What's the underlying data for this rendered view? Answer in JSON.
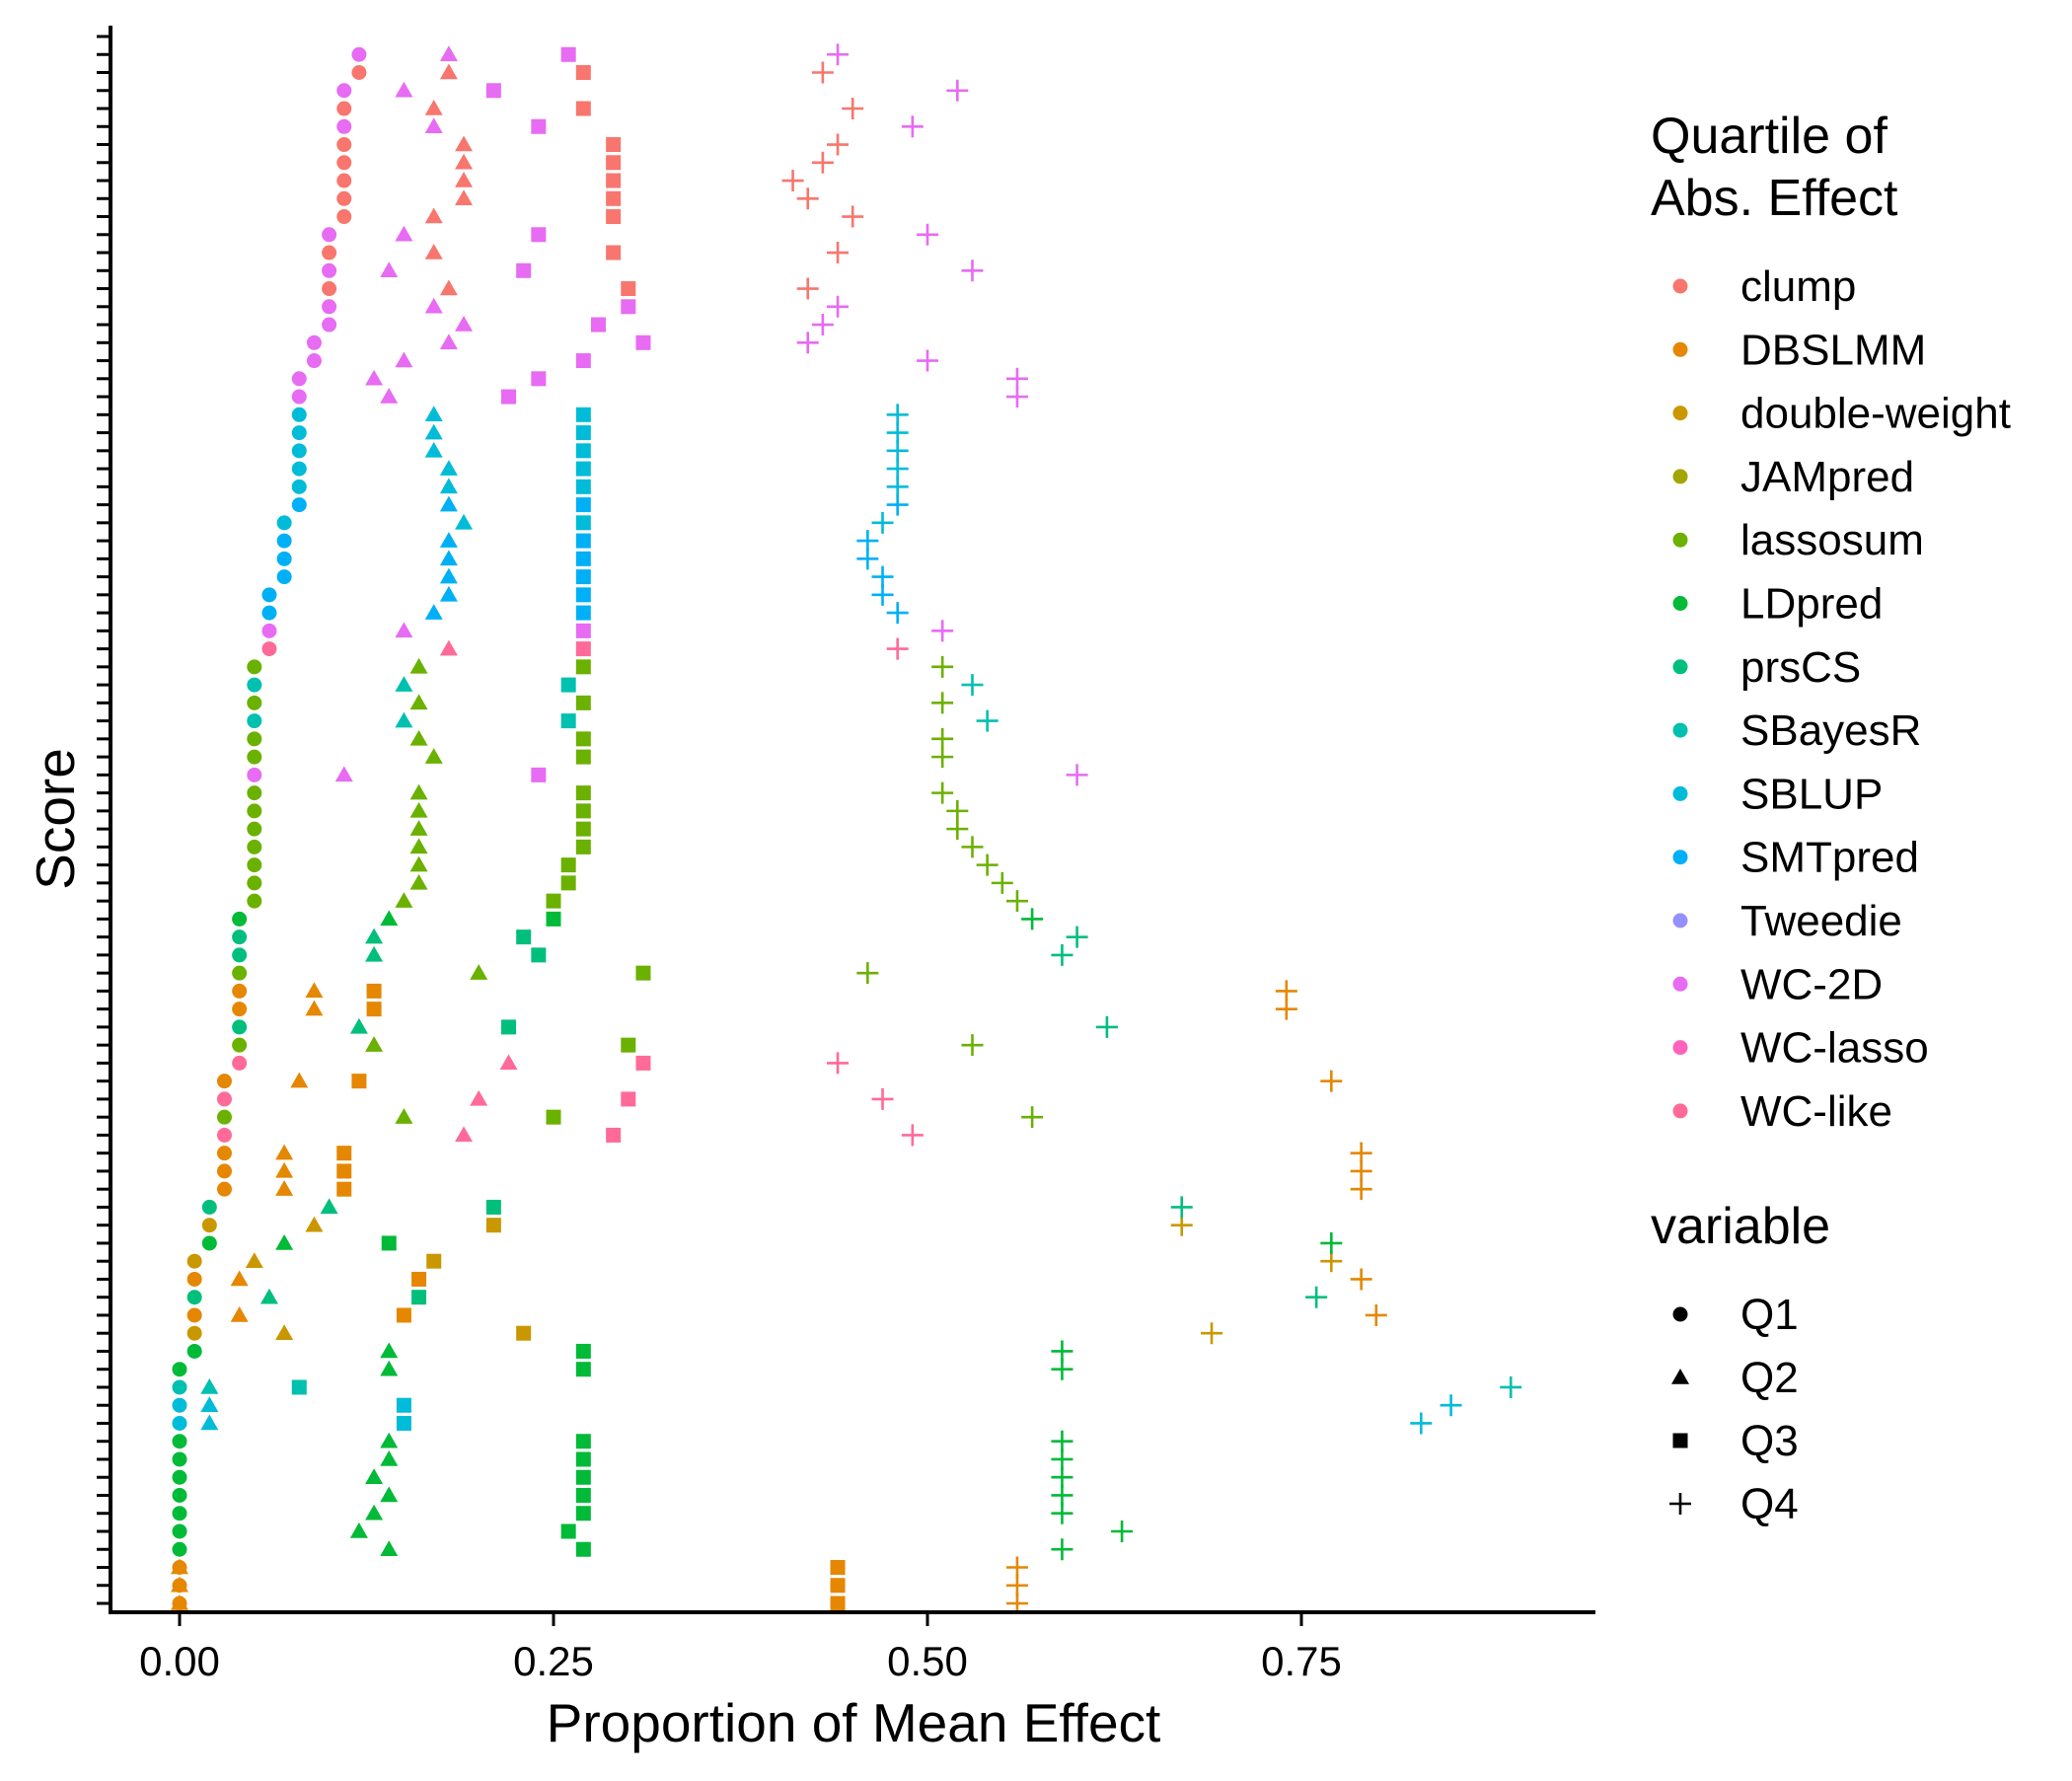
{
  "chart_data": {
    "type": "scatter",
    "xlabel": "Proportion of Mean Effect",
    "ylabel": "Score",
    "xlim": [
      -0.1,
      0.94
    ],
    "ylim": [
      0.5,
      88.5
    ],
    "x_ticks": [
      "0.00",
      "0.25",
      "0.50",
      "0.75"
    ],
    "x_tick_values": [
      0,
      0.25,
      0.5,
      0.75
    ],
    "y_tick_count": 88,
    "y_tick_labels_shown": false,
    "grid": false,
    "legend_position": "right",
    "legend_color": {
      "title_line1": "Quartile of",
      "title_line2": "Abs. Effect",
      "entries": [
        {
          "label": "clump",
          "color": "#F8766D"
        },
        {
          "label": "DBSLMM",
          "color": "#E58700"
        },
        {
          "label": "double-weight",
          "color": "#C99800"
        },
        {
          "label": "JAMpred",
          "color": "#A3A500"
        },
        {
          "label": "lassosum",
          "color": "#6BB100"
        },
        {
          "label": "LDpred",
          "color": "#00BA38"
        },
        {
          "label": "prsCS",
          "color": "#00BF7D"
        },
        {
          "label": "SBayesR",
          "color": "#00C0AF"
        },
        {
          "label": "SBLUP",
          "color": "#00BCD8"
        },
        {
          "label": "SMTpred",
          "color": "#00B0F6"
        },
        {
          "label": "Tweedie",
          "color": "#9590FF"
        },
        {
          "label": "WC-2D",
          "color": "#E76BF3"
        },
        {
          "label": "WC-lasso",
          "color": "#FF62BC"
        },
        {
          "label": "WC-like",
          "color": "#FF6A98"
        }
      ]
    },
    "legend_shape": {
      "title": "variable",
      "entries": [
        {
          "label": "Q1",
          "shape": "circle"
        },
        {
          "label": "Q2",
          "shape": "triangle"
        },
        {
          "label": "Q3",
          "shape": "square"
        },
        {
          "label": "Q4",
          "shape": "plus"
        }
      ]
    },
    "series": [
      {
        "method": "DBSLMM",
        "y": [
          1,
          2,
          3
        ],
        "Q1": [
          0,
          0,
          0
        ],
        "Q2": [
          0,
          0,
          0
        ],
        "Q3": [
          0.44,
          0.44,
          0.44
        ],
        "Q4": [
          0.56,
          0.56,
          0.56
        ]
      },
      {
        "method": "LDpred",
        "y": [
          4,
          5,
          6,
          7,
          8,
          9,
          10
        ],
        "Q1": [
          0,
          0,
          0,
          0,
          0,
          0,
          0
        ],
        "Q2": [
          0.14,
          0.12,
          0.13,
          0.14,
          0.13,
          0.14,
          0.14
        ],
        "Q3": [
          0.27,
          0.26,
          0.27,
          0.27,
          0.27,
          0.27,
          0.27
        ],
        "Q4": [
          0.59,
          0.63,
          0.59,
          0.59,
          0.59,
          0.59,
          0.59
        ]
      },
      {
        "method": "SBLUP",
        "y": [
          11,
          12
        ],
        "Q1": [
          0,
          0
        ],
        "Q2": [
          0.02,
          0.02
        ],
        "Q3": [
          0.15,
          0.15
        ],
        "Q4": [
          0.83,
          0.85
        ]
      },
      {
        "method": "SBayesR",
        "y": [
          13
        ],
        "Q1": [
          0
        ],
        "Q2": [
          0.02
        ],
        "Q3": [
          0.08
        ],
        "Q4": [
          0.89
        ]
      },
      {
        "method": "LDpred",
        "y": [
          14,
          15
        ],
        "Q1": [
          0,
          0.01
        ],
        "Q2": [
          0.14,
          0.14
        ],
        "Q3": [
          0.27,
          0.27
        ],
        "Q4": [
          0.59,
          0.59
        ]
      },
      {
        "method": "double-weight",
        "y": [
          16
        ],
        "Q1": [
          0.01
        ],
        "Q2": [
          0.07
        ],
        "Q3": [
          0.23
        ],
        "Q4": [
          0.69
        ]
      },
      {
        "method": "DBSLMM",
        "y": [
          17
        ],
        "Q1": [
          0.01
        ],
        "Q2": [
          0.04
        ],
        "Q3": [
          0.15
        ],
        "Q4": [
          0.8
        ]
      },
      {
        "method": "prsCS",
        "y": [
          18
        ],
        "Q1": [
          0.01
        ],
        "Q2": [
          0.06
        ],
        "Q3": [
          0.16
        ],
        "Q4": [
          0.76
        ]
      },
      {
        "method": "DBSLMM",
        "y": [
          19
        ],
        "Q1": [
          0.01
        ],
        "Q2": [
          0.04
        ],
        "Q3": [
          0.16
        ],
        "Q4": [
          0.79
        ]
      },
      {
        "method": "double-weight",
        "y": [
          20
        ],
        "Q1": [
          0.01
        ],
        "Q2": [
          0.05
        ],
        "Q3": [
          0.17
        ],
        "Q4": [
          0.77
        ]
      },
      {
        "method": "LDpred",
        "y": [
          21
        ],
        "Q1": [
          0.02
        ],
        "Q2": [
          0.07
        ],
        "Q3": [
          0.14
        ],
        "Q4": [
          0.77
        ]
      },
      {
        "method": "double-weight",
        "y": [
          22
        ],
        "Q1": [
          0.02
        ],
        "Q2": [
          0.09
        ],
        "Q3": [
          0.21
        ],
        "Q4": [
          0.67
        ]
      },
      {
        "method": "prsCS",
        "y": [
          23
        ],
        "Q1": [
          0.02
        ],
        "Q2": [
          0.1
        ],
        "Q3": [
          0.21
        ],
        "Q4": [
          0.67
        ]
      },
      {
        "method": "DBSLMM",
        "y": [
          24,
          25,
          26
        ],
        "Q1": [
          0.03,
          0.03,
          0.03
        ],
        "Q2": [
          0.07,
          0.07,
          0.07
        ],
        "Q3": [
          0.11,
          0.11,
          0.11
        ],
        "Q4": [
          0.79,
          0.79,
          0.79
        ]
      },
      {
        "method": "WC-like",
        "y": [
          27
        ],
        "Q1": [
          0.03
        ],
        "Q2": [
          0.19
        ],
        "Q3": [
          0.29
        ],
        "Q4": [
          0.49
        ]
      },
      {
        "method": "lassosum",
        "y": [
          28
        ],
        "Q1": [
          0.03
        ],
        "Q2": [
          0.15
        ],
        "Q3": [
          0.25
        ],
        "Q4": [
          0.57
        ]
      },
      {
        "method": "WC-like",
        "y": [
          29
        ],
        "Q1": [
          0.03
        ],
        "Q2": [
          0.2
        ],
        "Q3": [
          0.3
        ],
        "Q4": [
          0.47
        ]
      },
      {
        "method": "DBSLMM",
        "y": [
          30
        ],
        "Q1": [
          0.03
        ],
        "Q2": [
          0.08
        ],
        "Q3": [
          0.12
        ],
        "Q4": [
          0.77
        ]
      },
      {
        "method": "WC-like",
        "y": [
          31
        ],
        "Q1": [
          0.04
        ],
        "Q2": [
          0.22
        ],
        "Q3": [
          0.31
        ],
        "Q4": [
          0.44
        ]
      },
      {
        "method": "lassosum",
        "y": [
          32
        ],
        "Q1": [
          0.04
        ],
        "Q2": [
          0.13
        ],
        "Q3": [
          0.3
        ],
        "Q4": [
          0.53
        ]
      },
      {
        "method": "prsCS",
        "y": [
          33
        ],
        "Q1": [
          0.04
        ],
        "Q2": [
          0.12
        ],
        "Q3": [
          0.22
        ],
        "Q4": [
          0.62
        ]
      },
      {
        "method": "DBSLMM",
        "y": [
          34,
          35
        ],
        "Q1": [
          0.04,
          0.04
        ],
        "Q2": [
          0.09,
          0.09
        ],
        "Q3": [
          0.13,
          0.13
        ],
        "Q4": [
          0.74,
          0.74
        ]
      },
      {
        "method": "lassosum",
        "y": [
          36
        ],
        "Q1": [
          0.04
        ],
        "Q2": [
          0.2
        ],
        "Q3": [
          0.31
        ],
        "Q4": [
          0.46
        ]
      },
      {
        "method": "prsCS",
        "y": [
          37,
          38
        ],
        "Q1": [
          0.04,
          0.04
        ],
        "Q2": [
          0.13,
          0.13
        ],
        "Q3": [
          0.24,
          0.23
        ],
        "Q4": [
          0.59,
          0.6
        ]
      },
      {
        "method": "LDpred",
        "y": [
          39
        ],
        "Q1": [
          0.04
        ],
        "Q2": [
          0.14
        ],
        "Q3": [
          0.25
        ],
        "Q4": [
          0.57
        ]
      },
      {
        "method": "lassosum",
        "y": [
          40,
          41,
          42,
          43,
          44,
          45,
          46
        ],
        "Q1": [
          0.05,
          0.05,
          0.05,
          0.05,
          0.05,
          0.05,
          0.05
        ],
        "Q2": [
          0.15,
          0.16,
          0.16,
          0.16,
          0.16,
          0.16,
          0.16
        ],
        "Q3": [
          0.25,
          0.26,
          0.26,
          0.27,
          0.27,
          0.27,
          0.27
        ],
        "Q4": [
          0.56,
          0.55,
          0.54,
          0.53,
          0.52,
          0.52,
          0.51
        ]
      },
      {
        "method": "WC-2D",
        "y": [
          47
        ],
        "Q1": [
          0.05
        ],
        "Q2": [
          0.11
        ],
        "Q3": [
          0.24
        ],
        "Q4": [
          0.6
        ]
      },
      {
        "method": "lassosum",
        "y": [
          48,
          49
        ],
        "Q1": [
          0.05,
          0.05
        ],
        "Q2": [
          0.17,
          0.16
        ],
        "Q3": [
          0.27,
          0.27
        ],
        "Q4": [
          0.51,
          0.51
        ]
      },
      {
        "method": "SBayesR",
        "y": [
          50
        ],
        "Q1": [
          0.05
        ],
        "Q2": [
          0.15
        ],
        "Q3": [
          0.26
        ],
        "Q4": [
          0.54
        ]
      },
      {
        "method": "lassosum",
        "y": [
          51
        ],
        "Q1": [
          0.05
        ],
        "Q2": [
          0.16
        ],
        "Q3": [
          0.27
        ],
        "Q4": [
          0.51
        ]
      },
      {
        "method": "SBayesR",
        "y": [
          52
        ],
        "Q1": [
          0.05
        ],
        "Q2": [
          0.15
        ],
        "Q3": [
          0.26
        ],
        "Q4": [
          0.53
        ]
      },
      {
        "method": "lassosum",
        "y": [
          53
        ],
        "Q1": [
          0.05
        ],
        "Q2": [
          0.16
        ],
        "Q3": [
          0.27
        ],
        "Q4": [
          0.51
        ]
      },
      {
        "method": "WC-like",
        "y": [
          54
        ],
        "Q1": [
          0.06
        ],
        "Q2": [
          0.18
        ],
        "Q3": [
          0.27
        ],
        "Q4": [
          0.48
        ]
      },
      {
        "method": "WC-2D",
        "y": [
          55
        ],
        "Q1": [
          0.06
        ],
        "Q2": [
          0.15
        ],
        "Q3": [
          0.27
        ],
        "Q4": [
          0.51
        ]
      },
      {
        "method": "SMTpred",
        "y": [
          56,
          57,
          58,
          59,
          60
        ],
        "Q1": [
          0.06,
          0.06,
          0.07,
          0.07,
          0.07
        ],
        "Q2": [
          0.17,
          0.18,
          0.18,
          0.18,
          0.18
        ],
        "Q3": [
          0.27,
          0.27,
          0.27,
          0.27,
          0.27
        ],
        "Q4": [
          0.48,
          0.47,
          0.47,
          0.46,
          0.46
        ]
      },
      {
        "method": "SBLUP",
        "y": [
          61
        ],
        "Q1": [
          0.07
        ],
        "Q2": [
          0.19
        ],
        "Q3": [
          0.27
        ],
        "Q4": [
          0.47
        ]
      },
      {
        "method": "SMTpred",
        "y": [
          62
        ],
        "Q1": [
          0.08
        ],
        "Q2": [
          0.18
        ],
        "Q3": [
          0.27
        ],
        "Q4": [
          0.48
        ]
      },
      {
        "method": "SBLUP",
        "y": [
          63,
          64,
          65,
          66,
          67
        ],
        "Q1": [
          0.08,
          0.08,
          0.08,
          0.08,
          0.08
        ],
        "Q2": [
          0.18,
          0.18,
          0.17,
          0.17,
          0.17
        ],
        "Q3": [
          0.27,
          0.27,
          0.27,
          0.27,
          0.27
        ],
        "Q4": [
          0.48,
          0.48,
          0.48,
          0.48,
          0.48
        ]
      },
      {
        "method": "WC-2D",
        "y": [
          68
        ],
        "Q1": [
          0.08
        ],
        "Q2": [
          0.14
        ],
        "Q3": [
          0.22
        ],
        "Q4": [
          0.56
        ]
      },
      {
        "method": "WC-2D",
        "y": [
          69
        ],
        "Q1": [
          0.08
        ],
        "Q2": [
          0.13
        ],
        "Q3": [
          0.24
        ],
        "Q4": [
          0.56
        ]
      },
      {
        "method": "WC-2D",
        "y": [
          70
        ],
        "Q1": [
          0.09
        ],
        "Q2": [
          0.15
        ],
        "Q3": [
          0.27
        ],
        "Q4": [
          0.5
        ]
      },
      {
        "method": "WC-2D",
        "y": [
          71
        ],
        "Q1": [
          0.09
        ],
        "Q2": [
          0.18
        ],
        "Q3": [
          0.31
        ],
        "Q4": [
          0.42
        ]
      },
      {
        "method": "WC-2D",
        "y": [
          72
        ],
        "Q1": [
          0.1
        ],
        "Q2": [
          0.19
        ],
        "Q3": [
          0.28
        ],
        "Q4": [
          0.43
        ]
      },
      {
        "method": "WC-2D",
        "y": [
          73
        ],
        "Q1": [
          0.1
        ],
        "Q2": [
          0.17
        ],
        "Q3": [
          0.3
        ],
        "Q4": [
          0.44
        ]
      },
      {
        "method": "clump",
        "y": [
          74
        ],
        "Q1": [
          0.1
        ],
        "Q2": [
          0.18
        ],
        "Q3": [
          0.3
        ],
        "Q4": [
          0.42
        ]
      },
      {
        "method": "WC-2D",
        "y": [
          75
        ],
        "Q1": [
          0.1
        ],
        "Q2": [
          0.14
        ],
        "Q3": [
          0.23
        ],
        "Q4": [
          0.53
        ]
      },
      {
        "method": "clump",
        "y": [
          76
        ],
        "Q1": [
          0.1
        ],
        "Q2": [
          0.17
        ],
        "Q3": [
          0.29
        ],
        "Q4": [
          0.44
        ]
      },
      {
        "method": "WC-2D",
        "y": [
          77
        ],
        "Q1": [
          0.1
        ],
        "Q2": [
          0.15
        ],
        "Q3": [
          0.24
        ],
        "Q4": [
          0.5
        ]
      },
      {
        "method": "clump",
        "y": [
          78
        ],
        "Q1": [
          0.11
        ],
        "Q2": [
          0.17
        ],
        "Q3": [
          0.29
        ],
        "Q4": [
          0.45
        ]
      },
      {
        "method": "clump",
        "y": [
          79
        ],
        "Q1": [
          0.11
        ],
        "Q2": [
          0.19
        ],
        "Q3": [
          0.29
        ],
        "Q4": [
          0.42
        ]
      },
      {
        "method": "clump",
        "y": [
          80
        ],
        "Q1": [
          0.11
        ],
        "Q2": [
          0.19
        ],
        "Q3": [
          0.29
        ],
        "Q4": [
          0.41
        ]
      },
      {
        "method": "clump",
        "y": [
          81
        ],
        "Q1": [
          0.11
        ],
        "Q2": [
          0.19
        ],
        "Q3": [
          0.29
        ],
        "Q4": [
          0.43
        ]
      },
      {
        "method": "clump",
        "y": [
          82
        ],
        "Q1": [
          0.11
        ],
        "Q2": [
          0.19
        ],
        "Q3": [
          0.29
        ],
        "Q4": [
          0.44
        ]
      },
      {
        "method": "WC-2D",
        "y": [
          83
        ],
        "Q1": [
          0.11
        ],
        "Q2": [
          0.17
        ],
        "Q3": [
          0.24
        ],
        "Q4": [
          0.49
        ]
      },
      {
        "method": "clump",
        "y": [
          84
        ],
        "Q1": [
          0.11
        ],
        "Q2": [
          0.17
        ],
        "Q3": [
          0.27
        ],
        "Q4": [
          0.45
        ]
      },
      {
        "method": "WC-2D",
        "y": [
          85
        ],
        "Q1": [
          0.11
        ],
        "Q2": [
          0.15
        ],
        "Q3": [
          0.21
        ],
        "Q4": [
          0.52
        ]
      },
      {
        "method": "clump",
        "y": [
          86
        ],
        "Q1": [
          0.12
        ],
        "Q2": [
          0.18
        ],
        "Q3": [
          0.27
        ],
        "Q4": [
          0.43
        ]
      },
      {
        "method": "WC-2D",
        "y": [
          87
        ],
        "Q1": [
          0.12
        ],
        "Q2": [
          0.18
        ],
        "Q3": [
          0.26
        ],
        "Q4": [
          0.44
        ]
      }
    ]
  }
}
